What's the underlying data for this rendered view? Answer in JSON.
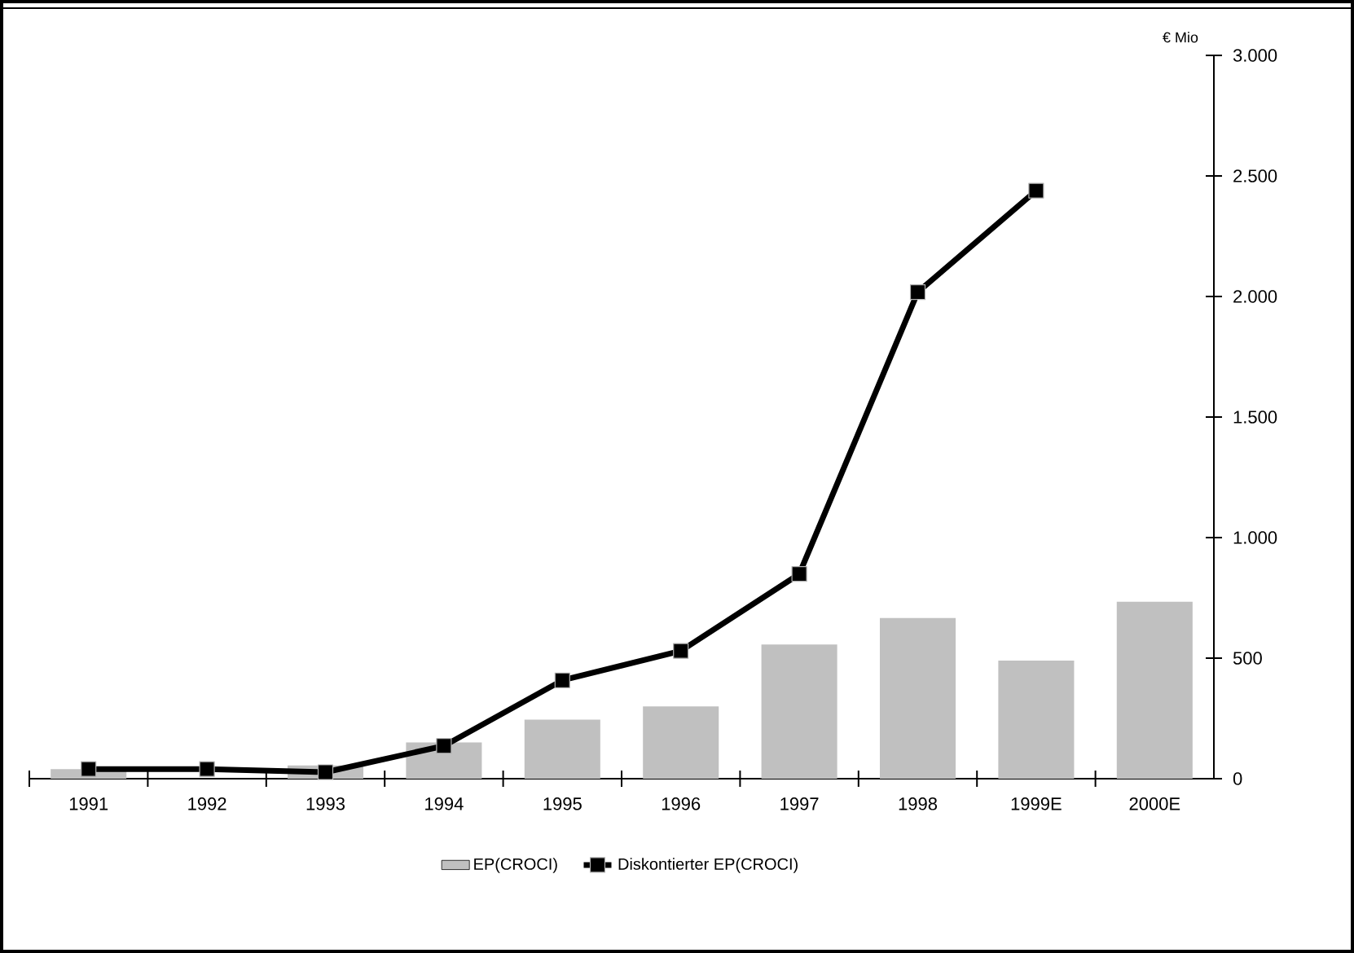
{
  "chart_data": {
    "type": "bar",
    "ylabel": "€ Mio",
    "categories": [
      "1991",
      "1992",
      "1993",
      "1994",
      "1995",
      "1996",
      "1997",
      "1998",
      "1999E",
      "2000E"
    ],
    "series": [
      {
        "name": "EP(CROCI)",
        "color": "#c0c0c0",
        "values": [
          40,
          null,
          55,
          150,
          245,
          300,
          557,
          666,
          490,
          734
        ]
      },
      {
        "name": "Diskontierter EP(CROCI)",
        "type": "line",
        "color": "#000000",
        "marker": "square",
        "line_style": "solid",
        "values": [
          40,
          40,
          27,
          136,
          408,
          530,
          849,
          2018,
          2439,
          null
        ]
      }
    ],
    "ylim": [
      0,
      3000
    ],
    "yticks": [
      {
        "value": 0,
        "label": "0"
      },
      {
        "value": 500,
        "label": "500"
      },
      {
        "value": 1000,
        "label": "1.000"
      },
      {
        "value": 1500,
        "label": "1.500"
      },
      {
        "value": 2000,
        "label": "2.000"
      },
      {
        "value": 2500,
        "label": "2.500"
      },
      {
        "value": 3000,
        "label": "3.000"
      }
    ],
    "legend": "bottom"
  }
}
